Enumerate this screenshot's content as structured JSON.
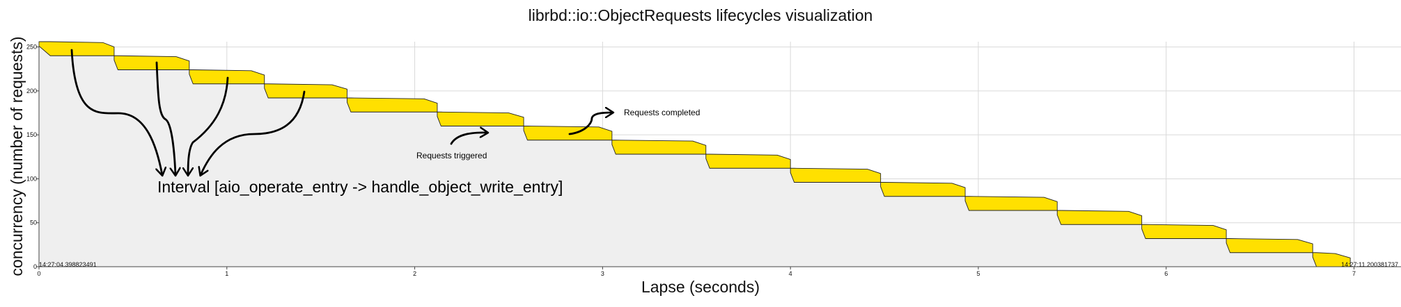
{
  "chart_data": {
    "type": "area",
    "title": "librbd::io::ObjectRequests lifecycles visualization",
    "xlabel": "Lapse (seconds)",
    "ylabel": "concurrency (number of requests)",
    "xlim": [
      0,
      7.25
    ],
    "ylim": [
      0,
      256
    ],
    "xticks": [
      0,
      1,
      2,
      3,
      4,
      5,
      6,
      7
    ],
    "yticks": [
      0,
      50,
      100,
      150,
      200,
      250
    ],
    "grid": true,
    "start_label": "14:27:04.398823491",
    "end_label": "14:27:11.200381737",
    "series": [
      {
        "values": [
          {
            "x": [
              0.0,
              0.06,
              0.34,
              0.4
            ],
            "upper": [
              256,
              256,
              255,
              250
            ],
            "lower": [
              251,
              240,
              240,
              240
            ]
          },
          {
            "x": [
              0.4,
              0.42,
              0.73,
              0.8
            ],
            "upper": [
              240,
              240,
              239,
              234
            ],
            "lower": [
              235,
              224,
              224,
              224
            ]
          },
          {
            "x": [
              0.8,
              0.82,
              1.13,
              1.2
            ],
            "upper": [
              224,
              224,
              223,
              218
            ],
            "lower": [
              219,
              208,
              208,
              208
            ]
          },
          {
            "x": [
              1.2,
              1.22,
              1.56,
              1.64
            ],
            "upper": [
              208,
              208,
              207,
              202
            ],
            "lower": [
              203,
              192,
              192,
              192
            ]
          },
          {
            "x": [
              1.64,
              1.66,
              2.05,
              2.12
            ],
            "upper": [
              192,
              192,
              191,
              186
            ],
            "lower": [
              187,
              176,
              176,
              176
            ]
          },
          {
            "x": [
              2.12,
              2.14,
              2.5,
              2.58
            ],
            "upper": [
              176,
              176,
              175,
              170
            ],
            "lower": [
              171,
              160,
              160,
              160
            ]
          },
          {
            "x": [
              2.58,
              2.6,
              2.98,
              3.05
            ],
            "upper": [
              160,
              160,
              159,
              154
            ],
            "lower": [
              155,
              144,
              144,
              144
            ]
          },
          {
            "x": [
              3.05,
              3.07,
              3.48,
              3.55
            ],
            "upper": [
              144,
              144,
              143,
              138
            ],
            "lower": [
              139,
              128,
              128,
              128
            ]
          },
          {
            "x": [
              3.55,
              3.57,
              3.93,
              4.0
            ],
            "upper": [
              128,
              128,
              127,
              122
            ],
            "lower": [
              123,
              112,
              112,
              112
            ]
          },
          {
            "x": [
              4.0,
              4.02,
              4.41,
              4.48
            ],
            "upper": [
              112,
              112,
              111,
              106
            ],
            "lower": [
              107,
              96,
              96,
              96
            ]
          },
          {
            "x": [
              4.48,
              4.5,
              4.86,
              4.93
            ],
            "upper": [
              96,
              96,
              95,
              90
            ],
            "lower": [
              91,
              80,
              80,
              80
            ]
          },
          {
            "x": [
              4.93,
              4.95,
              5.35,
              5.42
            ],
            "upper": [
              80,
              80,
              79,
              74
            ],
            "lower": [
              75,
              64,
              64,
              64
            ]
          },
          {
            "x": [
              5.42,
              5.44,
              5.8,
              5.87
            ],
            "upper": [
              64,
              64,
              63,
              58
            ],
            "lower": [
              59,
              48,
              48,
              48
            ]
          },
          {
            "x": [
              5.87,
              5.89,
              6.25,
              6.32
            ],
            "upper": [
              48,
              48,
              47,
              42
            ],
            "lower": [
              43,
              32,
              32,
              32
            ]
          },
          {
            "x": [
              6.32,
              6.34,
              6.7,
              6.78
            ],
            "upper": [
              32,
              32,
              31,
              26
            ],
            "lower": [
              27,
              16,
              16,
              16
            ]
          },
          {
            "x": [
              6.78,
              6.8,
              6.9,
              6.98
            ],
            "upper": [
              16,
              16,
              15,
              10
            ],
            "lower": [
              11,
              0,
              0,
              0
            ]
          }
        ]
      }
    ],
    "colors": {
      "band": "#FFE000",
      "background_area": "#EFEFEF",
      "grid": "#D9D9D9",
      "outline": "#222222"
    },
    "annotations": [
      {
        "text": "Interval [aio_operate_entry -> handle_object_write_entry]",
        "x": 0.62,
        "y": 88
      },
      {
        "text": "Requests triggered",
        "x": 1.98,
        "y": 123
      },
      {
        "text": "Requests completed",
        "x": 3.08,
        "y": 174
      }
    ]
  }
}
